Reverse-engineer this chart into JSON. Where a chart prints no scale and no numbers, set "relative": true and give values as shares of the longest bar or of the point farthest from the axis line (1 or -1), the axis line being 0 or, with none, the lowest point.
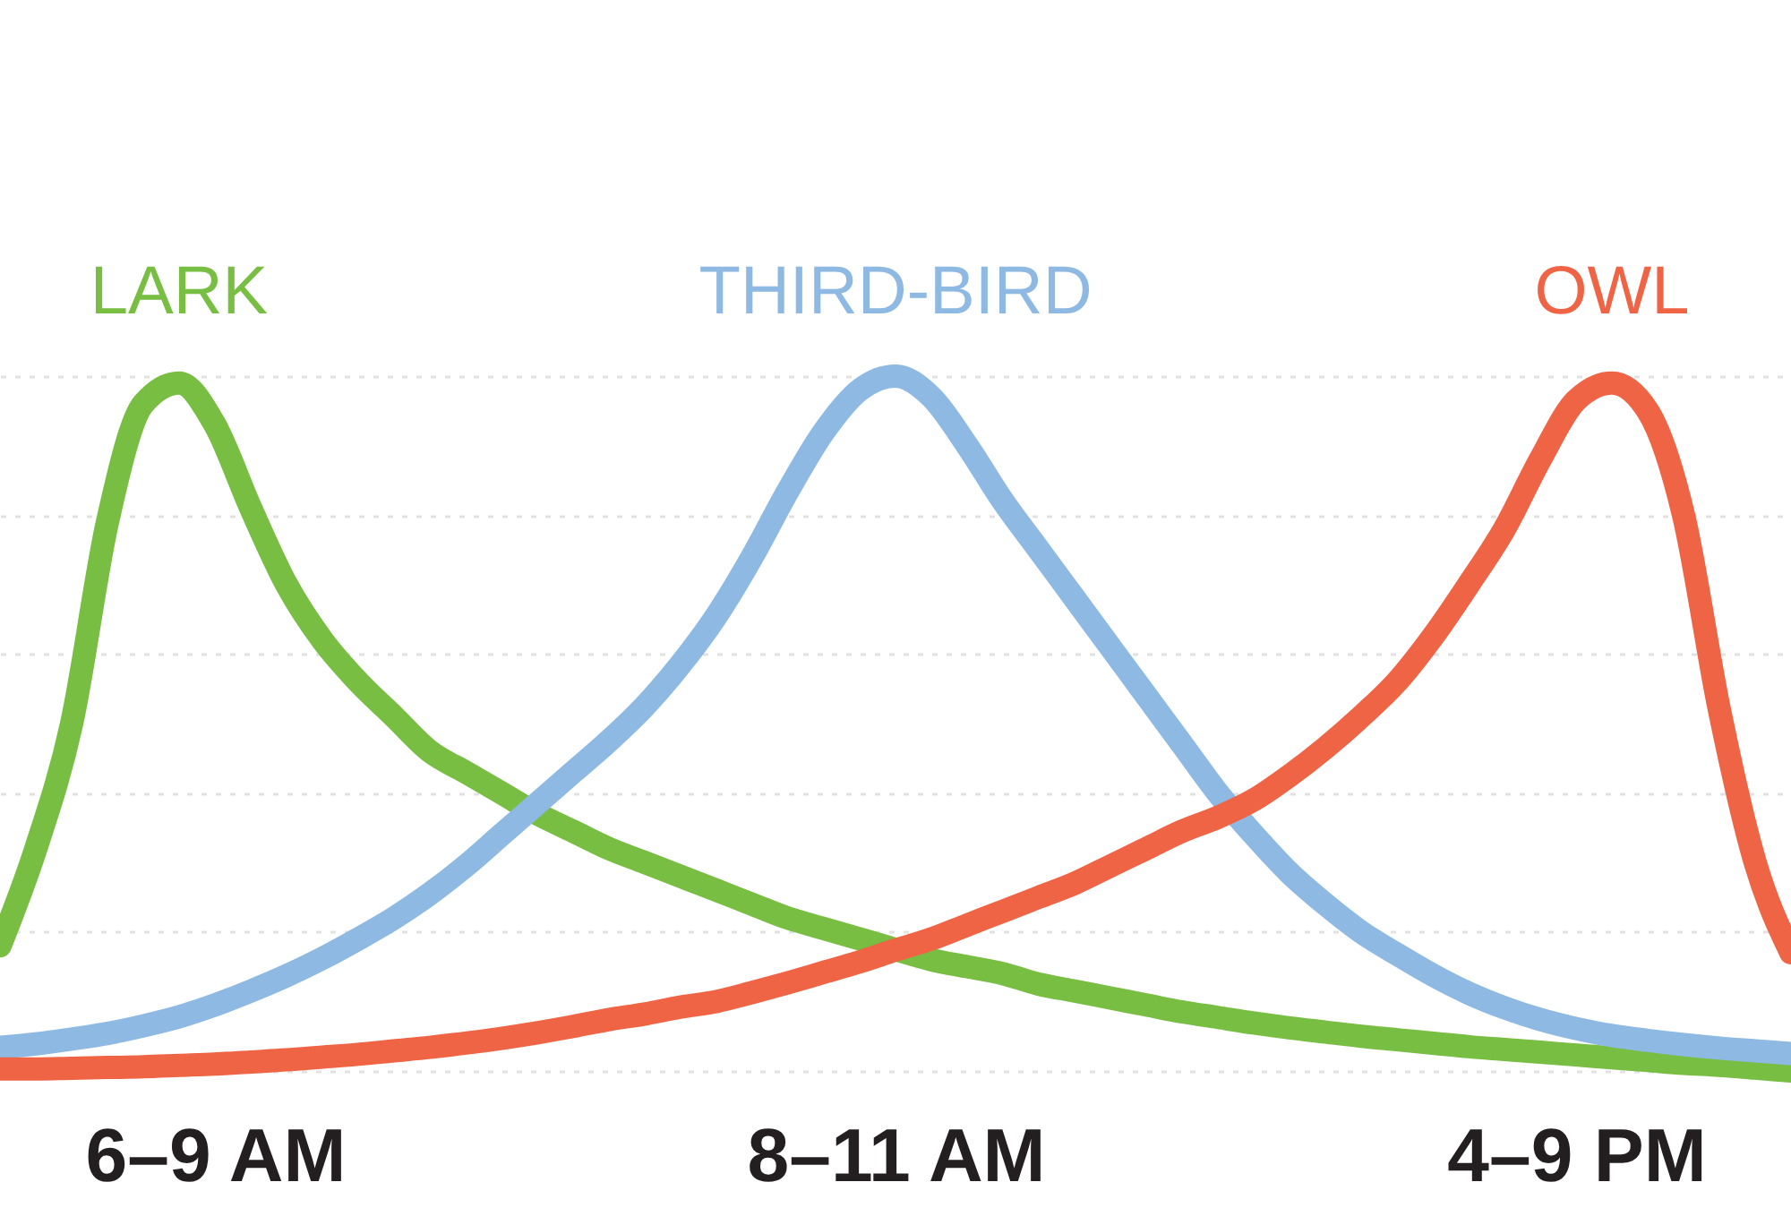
{
  "chart_data": {
    "type": "line",
    "relative": true,
    "grid": "y",
    "line_style": "solid",
    "categories": [
      null,
      null,
      null,
      null,
      null,
      null,
      "6–9 AM",
      null,
      null,
      null,
      null,
      null,
      null,
      null,
      null,
      null,
      null,
      null,
      null,
      null,
      null,
      null,
      null,
      null,
      null,
      "8–11 AM",
      null,
      null,
      null,
      null,
      null,
      null,
      null,
      null,
      null,
      null,
      null,
      null,
      null,
      null,
      null,
      null,
      null,
      null,
      "4–9 PM",
      null,
      null,
      null,
      null,
      null,
      null
    ],
    "series": [
      {
        "name": "LARK",
        "color": "#78be43",
        "values": [
          0.18,
          0.32,
          0.5,
          0.79,
          0.96,
          0.99,
          0.93,
          0.81,
          0.7,
          0.62,
          0.56,
          0.51,
          0.46,
          0.43,
          0.4,
          0.37,
          0.345,
          0.32,
          0.3,
          0.28,
          0.26,
          0.24,
          0.22,
          0.205,
          0.19,
          0.175,
          0.16,
          0.15,
          0.14,
          0.125,
          0.115,
          0.105,
          0.095,
          0.085,
          0.077,
          0.069,
          0.062,
          0.056,
          0.05,
          0.045,
          0.04,
          0.035,
          0.031,
          0.027,
          0.023,
          0.019,
          0.015,
          0.011,
          0.008,
          0.004,
          0.0
        ]
      },
      {
        "name": "THIRD-BIRD",
        "color": "#8db9e2",
        "values": [
          0.034,
          0.039,
          0.046,
          0.054,
          0.065,
          0.078,
          0.095,
          0.115,
          0.137,
          0.162,
          0.19,
          0.22,
          0.255,
          0.295,
          0.34,
          0.385,
          0.43,
          0.475,
          0.525,
          0.585,
          0.655,
          0.74,
          0.835,
          0.92,
          0.98,
          1.0,
          0.97,
          0.9,
          0.82,
          0.75,
          0.68,
          0.61,
          0.54,
          0.47,
          0.4,
          0.34,
          0.285,
          0.24,
          0.2,
          0.168,
          0.138,
          0.112,
          0.091,
          0.074,
          0.061,
          0.051,
          0.044,
          0.038,
          0.033,
          0.029,
          0.025
        ]
      },
      {
        "name": "OWL",
        "color": "#ef6445",
        "values": [
          0.003,
          0.003,
          0.004,
          0.005,
          0.006,
          0.008,
          0.01,
          0.013,
          0.016,
          0.02,
          0.024,
          0.029,
          0.034,
          0.04,
          0.047,
          0.055,
          0.064,
          0.074,
          0.082,
          0.092,
          0.1,
          0.113,
          0.127,
          0.142,
          0.157,
          0.174,
          0.19,
          0.21,
          0.23,
          0.25,
          0.27,
          0.295,
          0.32,
          0.345,
          0.365,
          0.39,
          0.425,
          0.465,
          0.51,
          0.56,
          0.625,
          0.7,
          0.78,
          0.88,
          0.965,
          0.99,
          0.95,
          0.8,
          0.52,
          0.3,
          0.17
        ]
      }
    ]
  }
}
